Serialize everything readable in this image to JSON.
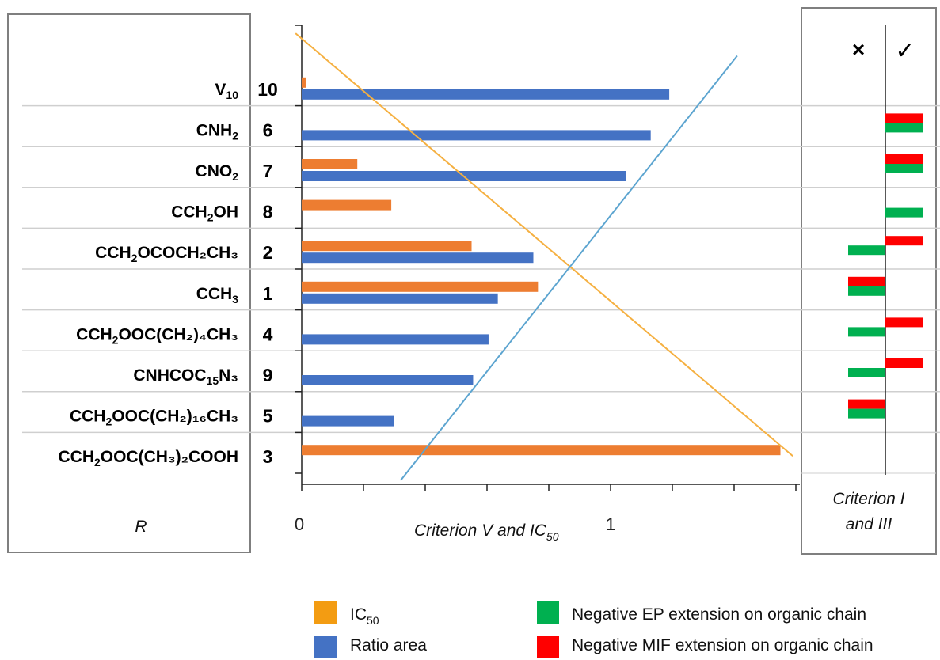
{
  "chart_data": {
    "type": "bar",
    "xlabel": "Criterion V and IC50",
    "x_ticks": [
      "0",
      "1"
    ],
    "xlim": [
      0,
      1.6
    ],
    "substituent_header": "R",
    "right_panel_label_line1": "Criterion I",
    "right_panel_label_line2": "and III",
    "right_panel_headers": [
      "×",
      "✓"
    ],
    "rows": [
      {
        "r_main": "V",
        "r_sub": "10",
        "r_tail": "",
        "compound": "10",
        "ic50": 0.015,
        "ratio_area": 1.19,
        "ep": 0,
        "mif": 0
      },
      {
        "r_main": "CNH",
        "r_sub": "2",
        "r_tail": "",
        "compound": "6",
        "ic50": 0,
        "ratio_area": 1.13,
        "ep": 1,
        "mif": 1
      },
      {
        "r_main": "CNO",
        "r_sub": "2",
        "r_tail": "",
        "compound": "7",
        "ic50": 0.18,
        "ratio_area": 1.05,
        "ep": 1,
        "mif": 1
      },
      {
        "r_main": "CCH",
        "r_sub": "2",
        "r_tail": "OH",
        "compound": "8",
        "ic50": 0.29,
        "ratio_area": 0,
        "ep": 1,
        "mif": 0
      },
      {
        "r_main": "CCH",
        "r_sub": "2",
        "r_tail": "OCOCH₂CH₃",
        "compound": "2",
        "ic50": 0.55,
        "ratio_area": 0.75,
        "ep": -1,
        "mif": 1
      },
      {
        "r_main": "CCH",
        "r_sub": "3",
        "r_tail": "",
        "compound": "1",
        "ic50": 0.765,
        "ratio_area": 0.635,
        "ep": -1,
        "mif": -1
      },
      {
        "r_main": "CCH",
        "r_sub": "2",
        "r_tail": "OOC(CH₂)₄CH₃",
        "compound": "4",
        "ic50": 0,
        "ratio_area": 0.605,
        "ep": -1,
        "mif": 1
      },
      {
        "r_main": "CNHCOC",
        "r_sub": "15",
        "r_tail": "N₃",
        "compound": "9",
        "ic50": 0,
        "ratio_area": 0.555,
        "ep": -1,
        "mif": 1
      },
      {
        "r_main": "CCH",
        "r_sub": "2",
        "r_tail": "OOC(CH₂)₁₆CH₃",
        "compound": "5",
        "ic50": 0,
        "ratio_area": 0.3,
        "ep": -1,
        "mif": -1
      },
      {
        "r_main": "CCH",
        "r_sub": "2",
        "r_tail": "OOC(CH₃)₂COOH",
        "compound": "3",
        "ic50": 1.55,
        "ratio_area": 0,
        "ep": 0,
        "mif": 0
      }
    ],
    "trend_lines": [
      {
        "series": "IC50",
        "from": [
          -0.02,
          10.35
        ],
        "to": [
          1.59,
          0.0
        ],
        "color": "#F5B041"
      },
      {
        "series": "Ratio area",
        "from": [
          0.32,
          -0.6
        ],
        "to": [
          1.41,
          9.8
        ],
        "color": "#5DA5D0"
      }
    ],
    "legend": [
      {
        "label": "IC",
        "sub": "50",
        "color": "#F39C12"
      },
      {
        "label": "Ratio area",
        "sub": "",
        "color": "#4472C4"
      },
      {
        "label": "Negative EP extension on organic chain",
        "sub": "",
        "color": "#00B050"
      },
      {
        "label": "Negative MIF extension on organic chain",
        "sub": "",
        "color": "#FF0000"
      }
    ],
    "colors": {
      "ic50": "#ED7D31",
      "ratio_area": "#4472C4",
      "ep": "#00B050",
      "mif": "#FF0000"
    }
  }
}
